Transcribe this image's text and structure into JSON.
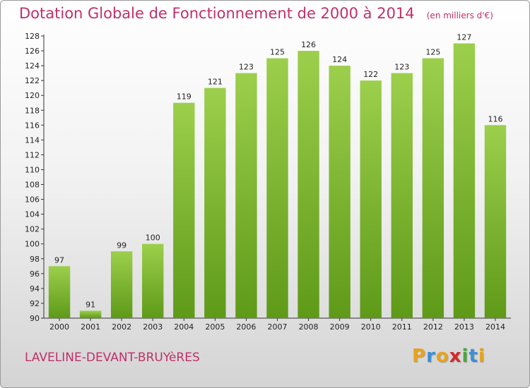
{
  "chart_data": {
    "type": "bar",
    "title": "Dotation Globale de Fonctionnement de 2000 à 2014",
    "subtitle": "(en milliers d'€)",
    "categories": [
      "2000",
      "2001",
      "2002",
      "2003",
      "2004",
      "2005",
      "2006",
      "2007",
      "2008",
      "2009",
      "2010",
      "2011",
      "2012",
      "2013",
      "2014"
    ],
    "values": [
      97,
      91,
      99,
      100,
      119,
      121,
      123,
      125,
      126,
      124,
      122,
      123,
      125,
      127,
      116
    ],
    "xlabel": "",
    "ylabel": "",
    "ylim": [
      90,
      128
    ],
    "yticks": [
      90,
      92,
      94,
      96,
      98,
      100,
      102,
      104,
      106,
      108,
      110,
      112,
      114,
      116,
      118,
      120,
      122,
      124,
      126,
      128
    ],
    "grid": false,
    "bar_color_top": "#9ccf4c",
    "bar_color_bottom": "#5e9a18"
  },
  "footer": {
    "commune": "LAVELINE-DEVANT-BRUYèRES",
    "logo_text": "Proxiti",
    "logo_colors": [
      "#e8a21c",
      "#3d8fd6",
      "#e8a21c",
      "#d12a2a",
      "#4aa63b",
      "#3d8fd6",
      "#e8a21c"
    ]
  },
  "colors": {
    "title": "#c0306a",
    "axis": "#333333"
  }
}
